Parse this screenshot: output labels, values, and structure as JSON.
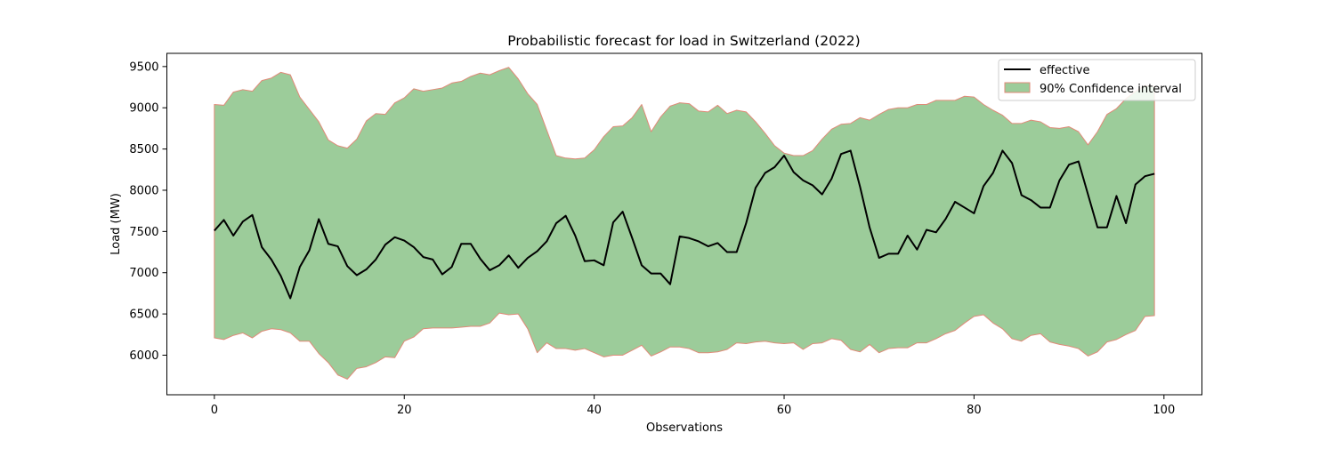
{
  "chart_data": {
    "type": "line",
    "title": "Probabilistic forecast for load in Switzerland (2022)",
    "xlabel": "Observations",
    "ylabel": "Load (MW)",
    "xlim": [
      -5,
      104
    ],
    "ylim": [
      5520,
      9660
    ],
    "xticks": [
      0,
      20,
      40,
      60,
      80,
      100
    ],
    "yticks": [
      6000,
      6500,
      7000,
      7500,
      8000,
      8500,
      9000,
      9500
    ],
    "grid": false,
    "legend_position": "top-right",
    "colors": {
      "line": "#000000",
      "band_fill": "#9ccc9a",
      "band_edge": "#e08a78"
    },
    "x": [
      0,
      1,
      2,
      3,
      4,
      5,
      6,
      7,
      8,
      9,
      10,
      11,
      12,
      13,
      14,
      15,
      16,
      17,
      18,
      19,
      20,
      21,
      22,
      23,
      24,
      25,
      26,
      27,
      28,
      29,
      30,
      31,
      32,
      33,
      34,
      35,
      36,
      37,
      38,
      39,
      40,
      41,
      42,
      43,
      44,
      45,
      46,
      47,
      48,
      49,
      50,
      51,
      52,
      53,
      54,
      55,
      56,
      57,
      58,
      59,
      60,
      61,
      62,
      63,
      64,
      65,
      66,
      67,
      68,
      69,
      70,
      71,
      72,
      73,
      74,
      75,
      76,
      77,
      78,
      79,
      80,
      81,
      82,
      83,
      84,
      85,
      86,
      87,
      88,
      89,
      90,
      91,
      92,
      93,
      94,
      95,
      96,
      97,
      98,
      99
    ],
    "series": [
      {
        "name": "effective",
        "type": "line",
        "values": [
          7510,
          7640,
          7450,
          7620,
          7700,
          7310,
          7160,
          6960,
          6690,
          7070,
          7270,
          7650,
          7350,
          7320,
          7080,
          6970,
          7040,
          7160,
          7340,
          7430,
          7390,
          7310,
          7190,
          7160,
          6980,
          7070,
          7350,
          7350,
          7170,
          7030,
          7090,
          7210,
          7060,
          7180,
          7260,
          7380,
          7600,
          7690,
          7450,
          7140,
          7150,
          7090,
          7610,
          7740,
          7420,
          7090,
          6990,
          6990,
          6860,
          7440,
          7420,
          7380,
          7320,
          7360,
          7250,
          7250,
          7600,
          8030,
          8210,
          8280,
          8420,
          8220,
          8120,
          8060,
          7950,
          8140,
          8440,
          8480,
          8040,
          7550,
          7180,
          7230,
          7230,
          7450,
          7280,
          7520,
          7490,
          7650,
          7860,
          7790,
          7720,
          8050,
          8210,
          8480,
          8330,
          7940,
          7880,
          7790,
          7790,
          8120,
          8310,
          8350,
          7950,
          7550,
          7550,
          7930,
          7600,
          8070,
          8170,
          8200
        ]
      },
      {
        "name": "90% Confidence interval",
        "type": "band",
        "upper": [
          9040,
          9030,
          9190,
          9220,
          9200,
          9330,
          9360,
          9430,
          9400,
          9130,
          8980,
          8830,
          8610,
          8540,
          8510,
          8620,
          8840,
          8930,
          8920,
          9060,
          9120,
          9230,
          9200,
          9220,
          9240,
          9300,
          9320,
          9380,
          9420,
          9400,
          9450,
          9490,
          9350,
          9170,
          9040,
          8730,
          8420,
          8390,
          8380,
          8390,
          8490,
          8650,
          8770,
          8780,
          8880,
          9040,
          8710,
          8890,
          9020,
          9060,
          9050,
          8960,
          8950,
          9030,
          8930,
          8970,
          8950,
          8830,
          8690,
          8540,
          8450,
          8420,
          8420,
          8480,
          8620,
          8740,
          8800,
          8810,
          8880,
          8850,
          8920,
          8980,
          9000,
          9000,
          9040,
          9040,
          9090,
          9090,
          9090,
          9140,
          9130,
          9040,
          8970,
          8910,
          8810,
          8810,
          8850,
          8830,
          8760,
          8750,
          8770,
          8710,
          8550,
          8710,
          8920,
          8990,
          9110,
          9200,
          9270,
          9260
        ],
        "lower": [
          6210,
          6190,
          6240,
          6270,
          6210,
          6290,
          6320,
          6310,
          6270,
          6170,
          6170,
          6020,
          5910,
          5760,
          5710,
          5840,
          5860,
          5910,
          5980,
          5970,
          6170,
          6220,
          6320,
          6330,
          6330,
          6330,
          6340,
          6350,
          6350,
          6390,
          6510,
          6490,
          6500,
          6320,
          6030,
          6150,
          6080,
          6080,
          6060,
          6080,
          6030,
          5980,
          6000,
          6000,
          6060,
          6120,
          5990,
          6040,
          6100,
          6100,
          6080,
          6030,
          6030,
          6040,
          6070,
          6150,
          6140,
          6160,
          6170,
          6150,
          6140,
          6150,
          6070,
          6140,
          6150,
          6200,
          6180,
          6070,
          6040,
          6130,
          6030,
          6080,
          6090,
          6090,
          6150,
          6150,
          6200,
          6260,
          6300,
          6390,
          6470,
          6490,
          6390,
          6320,
          6200,
          6170,
          6240,
          6260,
          6160,
          6130,
          6110,
          6080,
          5990,
          6040,
          6160,
          6190,
          6250,
          6300,
          6470,
          6480
        ]
      }
    ]
  }
}
